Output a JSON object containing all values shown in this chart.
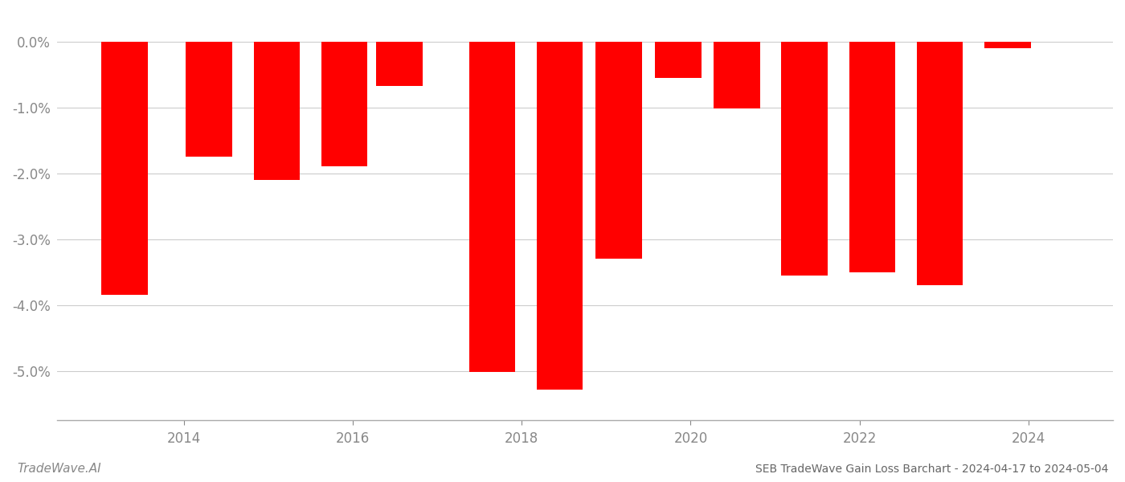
{
  "x_positions": [
    2013.3,
    2014.3,
    2015.1,
    2015.9,
    2016.55,
    2017.65,
    2018.45,
    2019.15,
    2019.85,
    2020.55,
    2021.35,
    2022.15,
    2022.95,
    2023.75
  ],
  "values": [
    -3.85,
    -1.75,
    -2.1,
    -1.9,
    -0.68,
    -5.02,
    -5.28,
    -3.3,
    -0.55,
    -1.02,
    -3.55,
    -3.5,
    -3.7,
    -0.1
  ],
  "bar_color": "#ff0000",
  "bar_width": 0.55,
  "title": "SEB TradeWave Gain Loss Barchart - 2024-04-17 to 2024-05-04",
  "watermark": "TradeWave.AI",
  "ylim_min": -5.75,
  "ylim_max": 0.3,
  "yticks": [
    0.0,
    -1.0,
    -2.0,
    -3.0,
    -4.0,
    -5.0
  ],
  "xtick_positions": [
    2014,
    2016,
    2018,
    2020,
    2022,
    2024
  ],
  "xtick_labels": [
    "2014",
    "2016",
    "2018",
    "2020",
    "2022",
    "2024"
  ],
  "xlim_min": 2012.5,
  "xlim_max": 2025.0,
  "bg_color": "#ffffff",
  "grid_color": "#cccccc",
  "axis_label_color": "#888888",
  "title_color": "#666666",
  "watermark_color": "#888888",
  "title_fontsize": 10,
  "watermark_fontsize": 11,
  "tick_fontsize": 12
}
